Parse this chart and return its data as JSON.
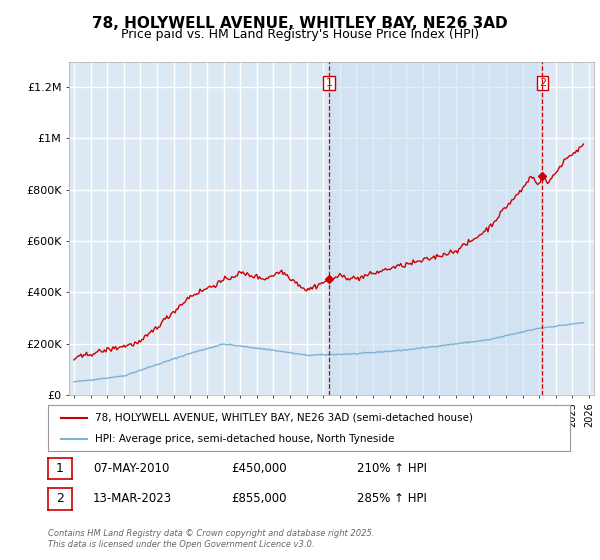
{
  "title": "78, HOLYWELL AVENUE, WHITLEY BAY, NE26 3AD",
  "subtitle": "Price paid vs. HM Land Registry's House Price Index (HPI)",
  "title_fontsize": 11,
  "subtitle_fontsize": 9,
  "plot_bg_color": "#dce9f5",
  "shade_color": "#e8f2fb",
  "grid_color": "#ffffff",
  "y_ticks": [
    0,
    200000,
    400000,
    600000,
    800000,
    1000000,
    1200000
  ],
  "y_tick_labels": [
    "£0",
    "£200K",
    "£400K",
    "£600K",
    "£800K",
    "£1M",
    "£1.2M"
  ],
  "ylim": [
    0,
    1300000
  ],
  "x_start_year": 1995,
  "x_end_year": 2026,
  "marker1_date": 2010.35,
  "marker1_price": 450000,
  "marker2_date": 2023.2,
  "marker2_price": 855000,
  "legend_line1": "78, HOLYWELL AVENUE, WHITLEY BAY, NE26 3AD (semi-detached house)",
  "legend_line2": "HPI: Average price, semi-detached house, North Tyneside",
  "ann1_date": "07-MAY-2010",
  "ann1_price": "£450,000",
  "ann1_hpi": "210% ↑ HPI",
  "ann2_date": "13-MAR-2023",
  "ann2_price": "£855,000",
  "ann2_hpi": "285% ↑ HPI",
  "footer": "Contains HM Land Registry data © Crown copyright and database right 2025.\nThis data is licensed under the Open Government Licence v3.0.",
  "red_color": "#cc0000",
  "blue_color": "#7ab3d4",
  "vline_color": "#cc0000"
}
